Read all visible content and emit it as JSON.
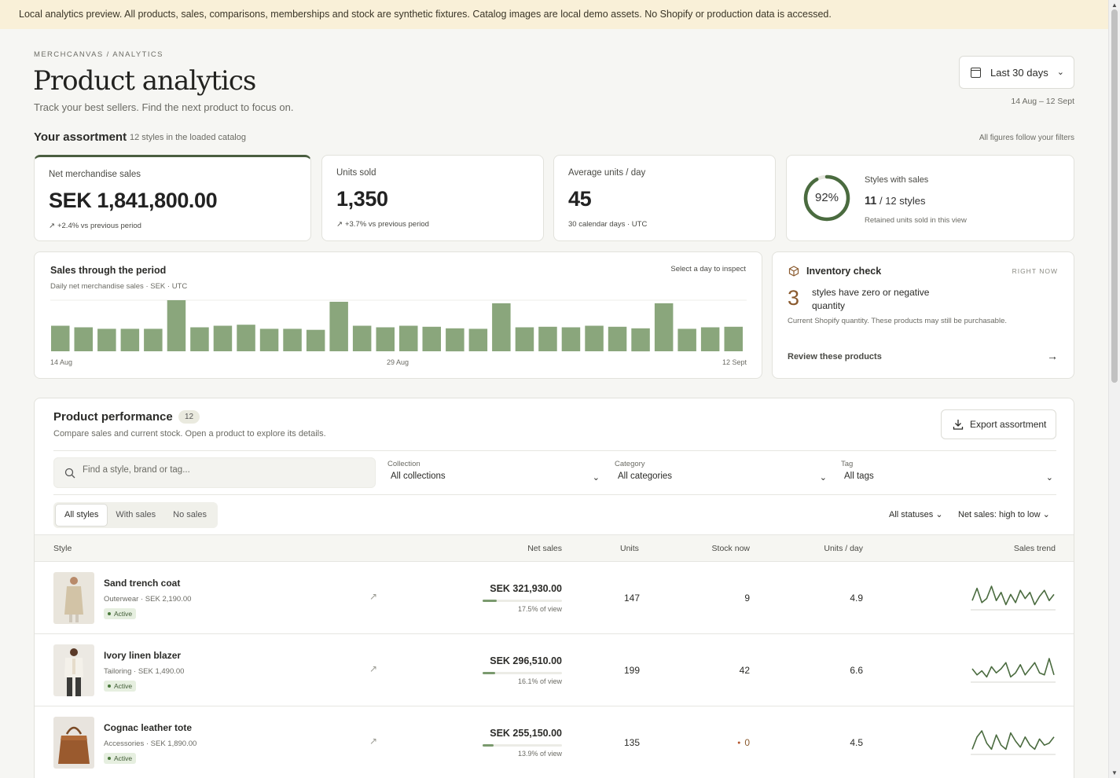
{
  "banner": "Local analytics preview. All products, sales, comparisons, memberships and stock are synthetic fixtures. Catalog images are local demo assets. No Shopify or production data is accessed.",
  "breadcrumb": "MERCHCANVAS / ANALYTICS",
  "page": {
    "title": "Product analytics",
    "subtitle": "Track your best sellers. Find the next product to focus on."
  },
  "date_filter": {
    "label": "Last 30 days",
    "range": "14 Aug – 12 Sept"
  },
  "assortment": {
    "heading": "Your assortment",
    "sub": "12 styles in the loaded catalog",
    "note": "All figures follow your filters"
  },
  "kpis": [
    {
      "label": "Net merchandise sales",
      "value": "SEK 1,841,800.00",
      "delta": "+2.4% vs previous period"
    },
    {
      "label": "Units sold",
      "value": "1,350",
      "delta": "+3.7% vs previous period"
    },
    {
      "label": "Average units / day",
      "value": "45",
      "delta": "30 calendar days · UTC"
    }
  ],
  "styles_with_sales": {
    "label": "Styles with sales",
    "percent_text": "92%",
    "percent": 0.92,
    "count": "11",
    "of": "/ 12 styles",
    "note": "Retained units sold in this view"
  },
  "sales_chart": {
    "title": "Sales through the period",
    "subtitle": "Daily net merchandise sales · SEK · UTC",
    "hint": "Select a day to inspect",
    "x_start": "14 Aug",
    "x_mid": "29 Aug",
    "x_end": "12 Sept",
    "bar_color": "#8aa67c"
  },
  "chart_data": {
    "type": "bar",
    "title": "Sales through the period",
    "categories": [
      "14 Aug",
      "15 Aug",
      "16 Aug",
      "17 Aug",
      "18 Aug",
      "19 Aug",
      "20 Aug",
      "21 Aug",
      "22 Aug",
      "23 Aug",
      "24 Aug",
      "25 Aug",
      "26 Aug",
      "27 Aug",
      "28 Aug",
      "29 Aug",
      "30 Aug",
      "31 Aug",
      "1 Sept",
      "2 Sept",
      "3 Sept",
      "4 Sept",
      "5 Sept",
      "6 Sept",
      "7 Sept",
      "8 Sept",
      "9 Sept",
      "10 Sept",
      "11 Sept",
      "12 Sept"
    ],
    "values": [
      0.5,
      0.47,
      0.44,
      0.44,
      0.44,
      1.0,
      0.47,
      0.5,
      0.52,
      0.44,
      0.44,
      0.42,
      0.97,
      0.5,
      0.47,
      0.5,
      0.48,
      0.45,
      0.44,
      0.94,
      0.47,
      0.48,
      0.47,
      0.5,
      0.48,
      0.45,
      0.94,
      0.44,
      0.47,
      0.48
    ],
    "ylim": [
      0,
      1
    ]
  },
  "inventory": {
    "title": "Inventory check",
    "badge": "RIGHT NOW",
    "count": "3",
    "text": "styles have zero or negative quantity",
    "note": "Current Shopify quantity. These products may still be purchasable.",
    "link": "Review these products",
    "arrow": "→"
  },
  "performance": {
    "title": "Product performance",
    "count": "12",
    "subtitle": "Compare sales and current stock. Open a product to explore its details.",
    "export_label": "Export assortment",
    "search_placeholder": "Find a style, brand or tag...",
    "filters": [
      {
        "label": "Collection",
        "value": "All collections"
      },
      {
        "label": "Category",
        "value": "All categories"
      },
      {
        "label": "Tag",
        "value": "All tags"
      }
    ],
    "segments": [
      "All styles",
      "With sales",
      "No sales"
    ],
    "status_filter": "All statuses",
    "sort": "Net sales: high to low",
    "columns": {
      "style": "Style",
      "net_sales": "Net sales",
      "units": "Units",
      "stock": "Stock now",
      "units_day": "Units / day",
      "trend": "Sales trend"
    },
    "rows": [
      {
        "name": "Sand trench coat",
        "meta": "Outerwear · SEK 2,190.00",
        "status": "Active",
        "sales": "SEK 321,930.00",
        "share": "17.5% of view",
        "share_value": 0.175,
        "units": "147",
        "stock": "9",
        "stock_zero": false,
        "per_day": "4.9",
        "trend": [
          0.3,
          0.9,
          0.2,
          0.4,
          1.0,
          0.3,
          0.7,
          0.1,
          0.6,
          0.2,
          0.8,
          0.4,
          0.7,
          0.1,
          0.5,
          0.8,
          0.3,
          0.6
        ]
      },
      {
        "name": "Ivory linen blazer",
        "meta": "Tailoring · SEK 1,490.00",
        "status": "Active",
        "sales": "SEK 296,510.00",
        "share": "16.1% of view",
        "share_value": 0.161,
        "units": "199",
        "stock": "42",
        "stock_zero": false,
        "per_day": "6.6",
        "trend": [
          0.5,
          0.2,
          0.4,
          0.1,
          0.6,
          0.3,
          0.5,
          0.8,
          0.1,
          0.3,
          0.7,
          0.2,
          0.5,
          0.8,
          0.3,
          0.2,
          1.0,
          0.2
        ]
      },
      {
        "name": "Cognac leather tote",
        "meta": "Accessories · SEK 1,890.00",
        "status": "Active",
        "sales": "SEK 255,150.00",
        "share": "13.9% of view",
        "share_value": 0.139,
        "units": "135",
        "stock": "0",
        "stock_zero": true,
        "per_day": "4.5",
        "trend": [
          0.1,
          0.7,
          1.0,
          0.4,
          0.1,
          0.8,
          0.3,
          0.1,
          0.9,
          0.5,
          0.2,
          0.7,
          0.3,
          0.1,
          0.6,
          0.3,
          0.4,
          0.7
        ]
      }
    ]
  },
  "colors": {
    "accent": "#4a6b3f",
    "ring_track": "#e6e6df",
    "sparkline": "#4a6b3f"
  }
}
